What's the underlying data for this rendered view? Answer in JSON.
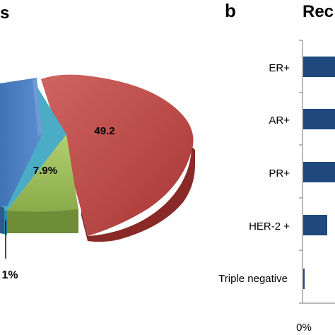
{
  "panels": {
    "a": {
      "title_fragment": "s"
    },
    "b": {
      "letter": "b",
      "title_fragment": "Rec"
    }
  },
  "chart_data": [
    {
      "type": "pie",
      "slices": [
        {
          "label": "49.2",
          "value": 49.2,
          "color": "#c0504d"
        },
        {
          "label": "7.9%",
          "value": 7.9,
          "color": "#9bbb59"
        },
        {
          "label": "",
          "value": null,
          "color": "#4bacc6"
        },
        {
          "label": "",
          "value": null,
          "color": "#4f81bd"
        }
      ],
      "callouts": [
        "1%"
      ]
    },
    {
      "type": "bar",
      "orientation": "horizontal",
      "categories": [
        "ER+",
        "AR+",
        "PR+",
        "HER-2 +",
        "Triple negative"
      ],
      "values": [
        null,
        null,
        null,
        7,
        0.5
      ],
      "color": "#1f497d",
      "xtick_labels": [
        "0%"
      ],
      "xlim_start": 0
    }
  ]
}
